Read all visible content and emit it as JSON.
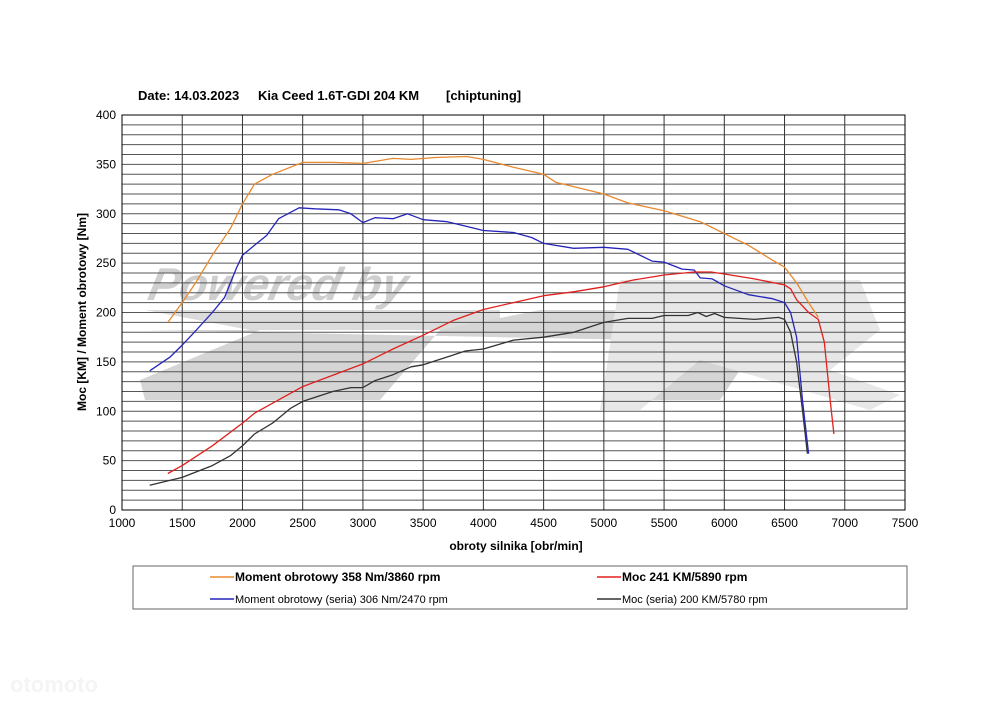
{
  "header": {
    "date": "Date: 14.03.2023",
    "car": "Kia Ceed 1.6T-GDI 204 KM",
    "mode": "[chiptuning]"
  },
  "watermark": {
    "text": "Powered by",
    "logo": "ZTR",
    "site": "otomoto"
  },
  "chart_data": {
    "type": "line",
    "title": "Date: 14.03.2023    Kia Ceed 1.6T-GDI 204 KM    [chiptuning]",
    "xlabel": "obroty silnika [obr/min]",
    "ylabel": "Moc [KM] / Moment obrotowy [Nm]",
    "xlim": [
      1000,
      7500
    ],
    "ylim": [
      0,
      400
    ],
    "xticks": [
      1000,
      1500,
      2000,
      2500,
      3000,
      3500,
      4000,
      4500,
      5000,
      5500,
      6000,
      6500,
      7000,
      7500
    ],
    "yticks": [
      0,
      50,
      100,
      150,
      200,
      250,
      300,
      350,
      400
    ],
    "grid": {
      "major_x": 500,
      "minor_y": 10
    },
    "legend_position": "bottom",
    "series": [
      {
        "name": "Moment obrotowy 358 Nm/3860 rpm",
        "color": "#e8892e",
        "bold": true,
        "x": [
          1380,
          1500,
          1600,
          1750,
          1900,
          2000,
          2100,
          2250,
          2500,
          2750,
          3000,
          3250,
          3400,
          3600,
          3860,
          4000,
          4250,
          4500,
          4600,
          5000,
          5200,
          5500,
          5800,
          6000,
          6200,
          6400,
          6500,
          6600,
          6700,
          6780
        ],
        "y": [
          190,
          210,
          228,
          258,
          285,
          310,
          330,
          340,
          352,
          352,
          351,
          356,
          355,
          357,
          358,
          355,
          347,
          340,
          332,
          320,
          311,
          303,
          292,
          280,
          268,
          253,
          246,
          230,
          210,
          195
        ]
      },
      {
        "name": "Moc 241 KM/5890 rpm",
        "color": "#e0201e",
        "bold": true,
        "x": [
          1380,
          1500,
          1750,
          2000,
          2100,
          2500,
          3000,
          3250,
          3500,
          3750,
          4000,
          4250,
          4500,
          4750,
          5000,
          5250,
          5500,
          5750,
          5890,
          6000,
          6250,
          6500,
          6550,
          6600,
          6700,
          6780,
          6830,
          6880,
          6910
        ],
        "y": [
          37,
          45,
          65,
          88,
          98,
          125,
          148,
          163,
          177,
          192,
          203,
          210,
          217,
          221,
          226,
          233,
          238,
          241,
          241,
          239,
          234,
          228,
          224,
          213,
          200,
          193,
          170,
          110,
          77
        ]
      },
      {
        "name": "Moment obrotowy (seria) 306 Nm/2470 rpm",
        "color": "#2424b8",
        "bold": false,
        "x": [
          1230,
          1400,
          1500,
          1600,
          1750,
          1850,
          1950,
          2000,
          2100,
          2200,
          2300,
          2470,
          2600,
          2800,
          2900,
          3000,
          3100,
          3250,
          3370,
          3500,
          3700,
          3800,
          4000,
          4250,
          4400,
          4500,
          4750,
          5000,
          5200,
          5400,
          5500,
          5650,
          5750,
          5800,
          5900,
          6000,
          6200,
          6400,
          6500,
          6550,
          6600,
          6650,
          6700
        ],
        "y": [
          141,
          155,
          167,
          180,
          200,
          215,
          245,
          258,
          268,
          278,
          295,
          306,
          305,
          304,
          300,
          291,
          296,
          295,
          300,
          294,
          292,
          289,
          283,
          281,
          276,
          270,
          265,
          266,
          264,
          252,
          251,
          244,
          243,
          235,
          234,
          227,
          218,
          214,
          210,
          200,
          175,
          110,
          57
        ]
      },
      {
        "name": "Moc (seria) 200 KM/5780 rpm",
        "color": "#333333",
        "bold": false,
        "x": [
          1230,
          1500,
          1750,
          1900,
          2000,
          2100,
          2250,
          2400,
          2500,
          2750,
          2900,
          3000,
          3100,
          3250,
          3400,
          3500,
          3750,
          3850,
          4000,
          4250,
          4500,
          4750,
          5000,
          5200,
          5400,
          5500,
          5700,
          5780,
          5850,
          5920,
          6000,
          6250,
          6450,
          6500,
          6550,
          6600,
          6650,
          6690
        ],
        "y": [
          25,
          33,
          45,
          55,
          65,
          77,
          88,
          103,
          110,
          120,
          124,
          124,
          131,
          137,
          145,
          147,
          157,
          161,
          163,
          172,
          175,
          180,
          190,
          194,
          194,
          197,
          197,
          200,
          196,
          199,
          195,
          193,
          195,
          193,
          180,
          150,
          100,
          57
        ]
      }
    ]
  }
}
